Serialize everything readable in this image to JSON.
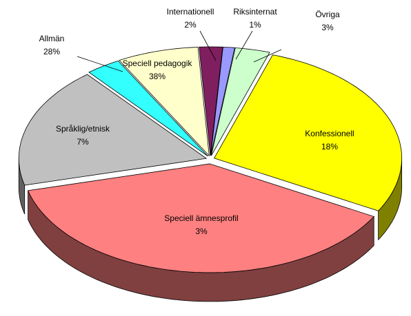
{
  "chart_data": {
    "type": "pie3d",
    "categories": [
      "Internationell",
      "Riksinternat",
      "Övriga",
      "Allmän",
      "Speciell pedagogik",
      "Konfessionell",
      "Speciell ämnesprofil",
      "Språklig/etnisk"
    ],
    "values": [
      2,
      1,
      3,
      28,
      38,
      18,
      3,
      7
    ],
    "value_labels": [
      "2%",
      "1%",
      "3%",
      "28%",
      "38%",
      "18%",
      "3%",
      "7%"
    ],
    "colors": [
      "#7f1f5f",
      "#9999ff",
      "#ccffcc",
      "#ffff00",
      "#ff8080",
      "#c0c0c0",
      "#33ffff",
      "#ffffcc"
    ]
  }
}
